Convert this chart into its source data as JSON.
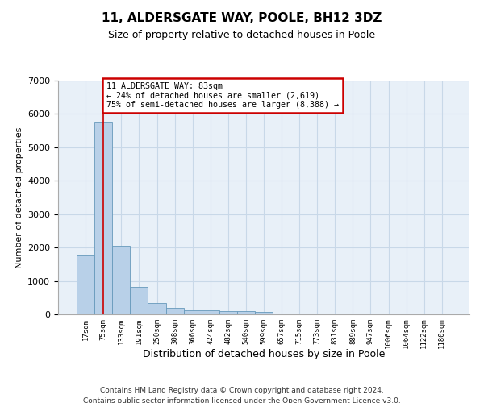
{
  "title": "11, ALDERSGATE WAY, POOLE, BH12 3DZ",
  "subtitle": "Size of property relative to detached houses in Poole",
  "xlabel": "Distribution of detached houses by size in Poole",
  "ylabel": "Number of detached properties",
  "footer_line1": "Contains HM Land Registry data © Crown copyright and database right 2024.",
  "footer_line2": "Contains public sector information licensed under the Open Government Licence v3.0.",
  "bar_labels": [
    "17sqm",
    "75sqm",
    "133sqm",
    "191sqm",
    "250sqm",
    "308sqm",
    "366sqm",
    "424sqm",
    "482sqm",
    "540sqm",
    "599sqm",
    "657sqm",
    "715sqm",
    "773sqm",
    "831sqm",
    "889sqm",
    "947sqm",
    "1006sqm",
    "1064sqm",
    "1122sqm",
    "1180sqm"
  ],
  "bar_values": [
    1780,
    5780,
    2050,
    820,
    340,
    190,
    120,
    110,
    100,
    85,
    70,
    0,
    0,
    0,
    0,
    0,
    0,
    0,
    0,
    0,
    0
  ],
  "bar_color": "#b8d0e8",
  "bar_edge_color": "#6699bb",
  "vline_pos": 1.0,
  "annotation_text": "11 ALDERSGATE WAY: 83sqm\n← 24% of detached houses are smaller (2,619)\n75% of semi-detached houses are larger (8,388) →",
  "annotation_box_color": "white",
  "annotation_box_edge_color": "#cc0000",
  "vline_color": "#cc0000",
  "ylim": [
    0,
    7000
  ],
  "yticks": [
    0,
    1000,
    2000,
    3000,
    4000,
    5000,
    6000,
    7000
  ],
  "grid_color": "#c8d8e8",
  "background_color": "#ffffff",
  "plot_background": "#e8f0f8"
}
